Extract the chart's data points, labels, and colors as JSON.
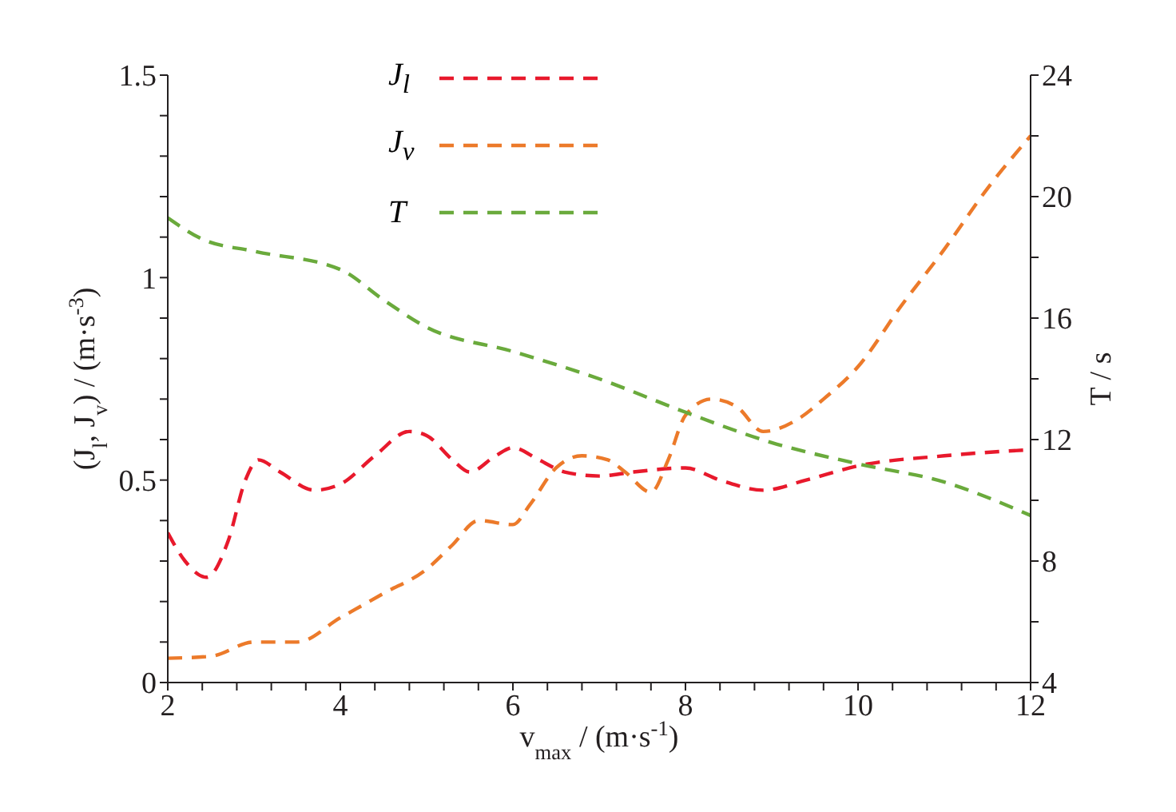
{
  "chart_data": {
    "type": "line",
    "xlabel": "v$_{max}$ / (m·s$^{-1}$)",
    "ylabel": "(J$_{l}$, J$_{v}$) / (m·s$^{-3}$)",
    "y2label": "T / s",
    "xlim": [
      2,
      12
    ],
    "xticks": [
      2,
      {
        "value": 2.4,
        "label": null
      },
      {
        "value": 2.8,
        "label": null
      },
      {
        "value": 3.2,
        "label": null
      },
      {
        "value": 3.6,
        "label": null
      },
      4,
      {
        "value": 4.4,
        "label": null
      },
      {
        "value": 4.8,
        "label": null
      },
      {
        "value": 5.2,
        "label": null
      },
      {
        "value": 5.6,
        "label": null
      },
      6,
      {
        "value": 6.4,
        "label": null
      },
      {
        "value": 6.8,
        "label": null
      },
      {
        "value": 7.2,
        "label": null
      },
      {
        "value": 7.6,
        "label": null
      },
      8,
      {
        "value": 8.4,
        "label": null
      },
      {
        "value": 8.8,
        "label": null
      },
      {
        "value": 9.2,
        "label": null
      },
      {
        "value": 9.6,
        "label": null
      },
      10,
      {
        "value": 10.4,
        "label": null
      },
      {
        "value": 10.8,
        "label": null
      },
      {
        "value": 11.2,
        "label": null
      },
      {
        "value": 11.6,
        "label": null
      },
      12
    ],
    "ylim": [
      0,
      1.5
    ],
    "yticks": [
      0,
      {
        "value": 0.1,
        "label": null
      },
      {
        "value": 0.2,
        "label": null
      },
      {
        "value": 0.3,
        "label": null
      },
      {
        "value": 0.4,
        "label": null
      },
      0.5,
      {
        "value": 0.6,
        "label": null
      },
      {
        "value": 0.7,
        "label": null
      },
      {
        "value": 0.8,
        "label": null
      },
      {
        "value": 0.9,
        "label": null
      },
      1,
      {
        "value": 1.1,
        "label": null
      },
      {
        "value": 1.2,
        "label": null
      },
      {
        "value": 1.3,
        "label": null
      },
      {
        "value": 1.4,
        "label": null
      },
      1.5
    ],
    "y2lim": [
      4,
      24
    ],
    "y2ticks": [
      4,
      {
        "value": 6,
        "label": null
      },
      8,
      {
        "value": 10,
        "label": null
      },
      12,
      {
        "value": 14,
        "label": null
      },
      16,
      {
        "value": 18,
        "label": null
      },
      20,
      {
        "value": 22,
        "label": null
      },
      24
    ],
    "legend": "top",
    "line_style": "dashed",
    "marker": "none",
    "series": [
      {
        "name": "J$_{l}$",
        "color": "#e8192c",
        "x": [
          2,
          2.2,
          2.45,
          2.7,
          2.9,
          3.05,
          3.3,
          3.7,
          4,
          4.4,
          4.8,
          5,
          5.3,
          5.5,
          5.8,
          6,
          6.3,
          6.6,
          7,
          7.4,
          8,
          8.4,
          8.9,
          9.4,
          10,
          11,
          12
        ],
        "values": [
          0.37,
          0.3,
          0.26,
          0.35,
          0.5,
          0.55,
          0.52,
          0.475,
          0.49,
          0.56,
          0.62,
          0.61,
          0.55,
          0.52,
          0.56,
          0.58,
          0.55,
          0.52,
          0.51,
          0.52,
          0.53,
          0.5,
          0.475,
          0.5,
          0.535,
          0.56,
          0.575
        ]
      },
      {
        "name": "J$_{v}$",
        "color": "#ec7a2a",
        "x": [
          2,
          2.5,
          3,
          3.5,
          4,
          4.5,
          5,
          5.3,
          5.6,
          6,
          6.2,
          6.5,
          6.8,
          7.1,
          7.3,
          7.6,
          7.8,
          8,
          8.3,
          8.6,
          8.9,
          9.3,
          9.6,
          10,
          10.5,
          11,
          11.5,
          12
        ],
        "values": [
          0.06,
          0.065,
          0.1,
          0.1,
          0.16,
          0.22,
          0.28,
          0.34,
          0.4,
          0.39,
          0.44,
          0.53,
          0.56,
          0.55,
          0.52,
          0.47,
          0.55,
          0.66,
          0.7,
          0.68,
          0.62,
          0.65,
          0.7,
          0.78,
          0.93,
          1.07,
          1.22,
          1.35
        ]
      },
      {
        "name": "T",
        "color": "#6aaa3c",
        "axis": "y2",
        "x": [
          2,
          2.4,
          3,
          4,
          4.5,
          5,
          6,
          7,
          8,
          9,
          10,
          11,
          12
        ],
        "values": [
          19.3,
          18.6,
          18.2,
          17.6,
          16.6,
          15.7,
          14.9,
          14,
          12.9,
          11.9,
          11.2,
          10.6,
          9.5
        ]
      }
    ]
  }
}
